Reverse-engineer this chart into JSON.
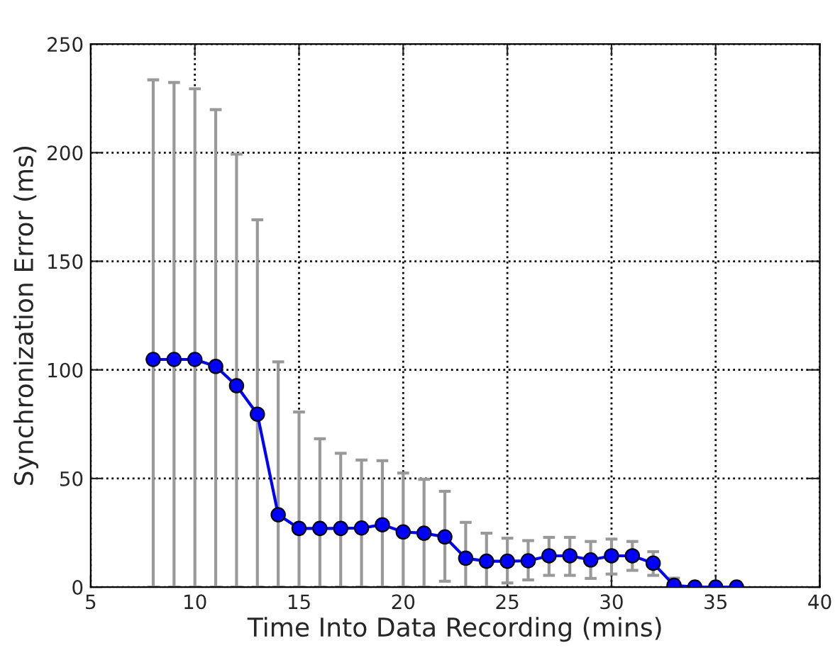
{
  "chart_data": {
    "type": "line",
    "xlabel": "Time Into Data Recording (mins)",
    "ylabel": "Synchronization Error (ms)",
    "x": [
      8,
      9,
      10,
      11,
      12,
      13,
      14,
      15,
      16,
      17,
      18,
      19,
      20,
      21,
      22,
      23,
      24,
      25,
      26,
      27,
      28,
      29,
      30,
      31,
      32,
      33,
      34,
      35,
      36
    ],
    "series": [
      {
        "color": "#0000ff",
        "values": [
          104.8,
          104.8,
          104.8,
          101.6,
          92.7,
          79.6,
          33.3,
          27,
          27,
          27,
          27.2,
          28.7,
          25.4,
          24.8,
          23.1,
          13.3,
          11.9,
          11.9,
          12.1,
          14.4,
          14.4,
          12.5,
          14.4,
          14.4,
          11,
          0.8,
          0,
          0,
          0
        ],
        "errors": [
          [
            0,
            233.5
          ],
          [
            0,
            232.3
          ],
          [
            0,
            229.4
          ],
          [
            0,
            219.8
          ],
          [
            0,
            199.3
          ],
          [
            0,
            169.1
          ],
          [
            0,
            103.7
          ],
          [
            0,
            80.6
          ],
          [
            0,
            68.3
          ],
          [
            0,
            61.6
          ],
          [
            0,
            58.5
          ],
          [
            0,
            58.2
          ],
          [
            0,
            52.5
          ],
          [
            0,
            49.6
          ],
          [
            2.7,
            44.1
          ],
          [
            0,
            29.8
          ],
          [
            0,
            24.8
          ],
          [
            1.9,
            22.5
          ],
          [
            3.3,
            21.4
          ],
          [
            5.4,
            22.9
          ],
          [
            5.4,
            22.9
          ],
          [
            4,
            21
          ],
          [
            6,
            22.1
          ],
          [
            7.7,
            21
          ],
          [
            5.4,
            16.3
          ],
          [
            0,
            4.1
          ],
          null,
          null,
          null
        ]
      }
    ],
    "xlim": [
      5,
      40
    ],
    "xticks": [
      5,
      10,
      15,
      20,
      25,
      30,
      35,
      40
    ],
    "ylim": [
      0,
      250
    ],
    "yticks": [
      0,
      50,
      100,
      150,
      200,
      250
    ],
    "grid": true,
    "marker": "circle",
    "line_style": "solid",
    "legend": false
  }
}
